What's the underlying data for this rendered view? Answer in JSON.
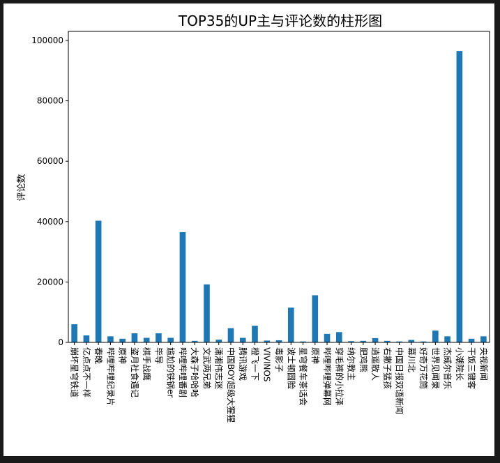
{
  "chart_data": {
    "type": "bar",
    "title": "TOP35的UP主与评论数的柱形图",
    "xlabel": "",
    "ylabel": "评论数",
    "ylim": [
      0,
      103000
    ],
    "yticks": [
      0,
      20000,
      40000,
      60000,
      80000,
      100000
    ],
    "grid": false,
    "legend": "none",
    "bar_color": "#1f77b4",
    "categories": [
      "崩坏星穹铁道",
      "亿点点不一样",
      "春晚",
      "哔哩哔哩纪录片",
      "原神",
      "盗月社食遇记",
      "棋手战鹰",
      "毕导",
      "尴尬的铁锅er",
      "哔哩哔哩番剧",
      "大森子哈哈哈",
      "文武两兄弟",
      "潇湘伟志迷",
      "中国BOY超级大猩猩",
      "腾讯游戏",
      "橙飞一下",
      "VIVINOS",
      "毒影子",
      "波士顿圆脸",
      "星穹餐车茶话会",
      "原神",
      "哔哩哔哩弹幕网",
      "穿毛裤的小拉泽",
      "纳尔教主",
      "肥鸡熊",
      "逍遥散人",
      "右撇子猛孩",
      "中国日报双语新闻",
      "幕川北",
      "好奇万花筒",
      "世界见闻录",
      "杰威尔音乐",
      "小潮院长",
      "干饭三键客",
      "央视新闻"
    ],
    "values": [
      6000,
      2300,
      40300,
      2000,
      1200,
      3000,
      1500,
      3000,
      1500,
      36500,
      500,
      19200,
      900,
      4700,
      1500,
      5500,
      600,
      700,
      11500,
      300,
      15600,
      2800,
      3400,
      400,
      500,
      1400,
      500,
      300,
      800,
      300,
      3900,
      2000,
      96500,
      1200,
      2000
    ]
  }
}
